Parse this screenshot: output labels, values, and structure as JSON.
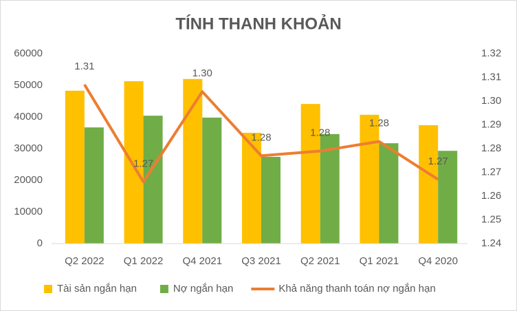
{
  "chart_data": {
    "type": "bar",
    "title": "TÍNH THANH KHOẢN",
    "categories": [
      "Q2 2022",
      "Q1 2022",
      "Q4 2021",
      "Q3 2021",
      "Q2 2021",
      "Q1 2021",
      "Q4 2020"
    ],
    "series": [
      {
        "name": "Tài sản ngắn hạn",
        "color": "#ffc000",
        "type": "bar",
        "values": [
          48300,
          51300,
          52000,
          35000,
          44100,
          40700,
          37400
        ]
      },
      {
        "name": "Nợ ngắn hạn",
        "color": "#70ad47",
        "type": "bar",
        "values": [
          36700,
          40400,
          39800,
          27400,
          34600,
          31700,
          29300
        ]
      },
      {
        "name": "Khả năng thanh toán nợ ngắn hạn",
        "color": "#ed7d31",
        "type": "line",
        "axis": "y2",
        "values": [
          1.307,
          1.266,
          1.304,
          1.277,
          1.279,
          1.283,
          1.267
        ],
        "value_labels": [
          "1.31",
          "1.27",
          "1.30",
          "1.28",
          "1.28",
          "1.28",
          "1.27"
        ]
      }
    ],
    "ylim": [
      0,
      60000
    ],
    "yticks": [
      0,
      10000,
      20000,
      30000,
      40000,
      50000,
      60000
    ],
    "y2lim": [
      1.24,
      1.32
    ],
    "y2ticks": [
      1.24,
      1.25,
      1.26,
      1.27,
      1.28,
      1.29,
      {
        "value": 1.3,
        "label": "1.30"
      },
      1.31,
      1.32
    ],
    "grid": false,
    "legend": "bottom"
  }
}
